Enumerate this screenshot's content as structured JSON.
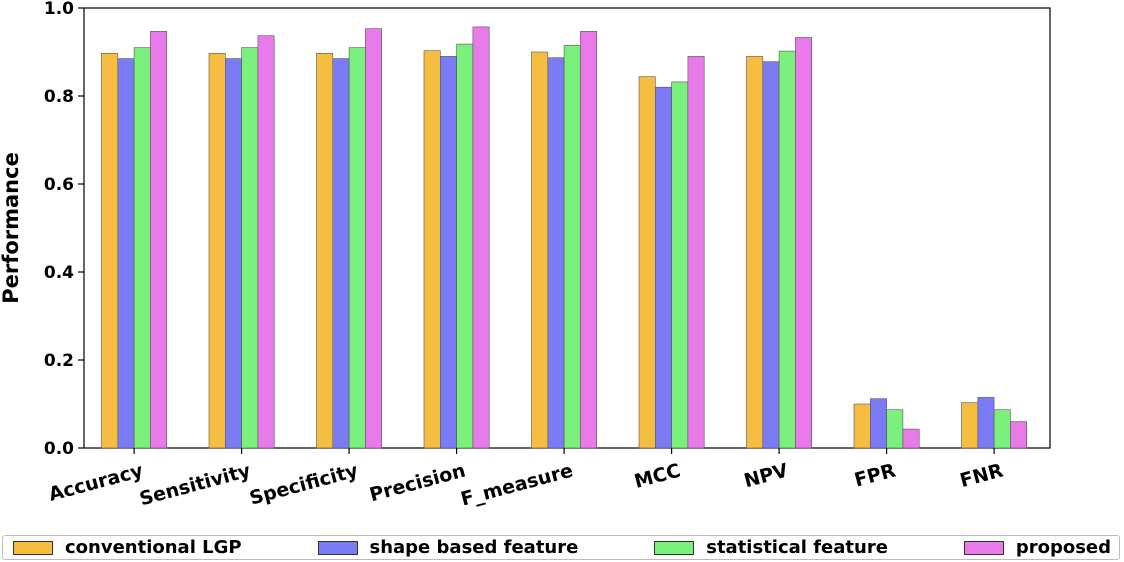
{
  "chart_data": {
    "type": "bar",
    "categories": [
      "Accuracy",
      "Sensitivity",
      "Specificity",
      "Precision",
      "F_measure",
      "MCC",
      "NPV",
      "FPR",
      "FNR"
    ],
    "series": [
      {
        "name": "conventional LGP",
        "color": "#f5be41",
        "values": [
          0.897,
          0.897,
          0.897,
          0.903,
          0.9,
          0.844,
          0.89,
          0.1,
          0.103
        ]
      },
      {
        "name": "shape based feature",
        "color": "#7b7bf5",
        "values": [
          0.885,
          0.885,
          0.885,
          0.89,
          0.887,
          0.82,
          0.878,
          0.112,
          0.115
        ]
      },
      {
        "name": "statistical feature",
        "color": "#7cf07c",
        "values": [
          0.91,
          0.91,
          0.91,
          0.918,
          0.915,
          0.832,
          0.902,
          0.087,
          0.087
        ]
      },
      {
        "name": "proposed",
        "color": "#e97ae9",
        "values": [
          0.947,
          0.937,
          0.953,
          0.957,
          0.947,
          0.89,
          0.933,
          0.043,
          0.06
        ]
      }
    ],
    "ylabel": "Performance",
    "xlabel": "",
    "ylim": [
      0,
      1.0
    ],
    "yticks": [
      "0.0",
      "0.2",
      "0.4",
      "0.6",
      "0.8",
      "1.0"
    ],
    "grid": false,
    "legend_position": "bottom"
  }
}
